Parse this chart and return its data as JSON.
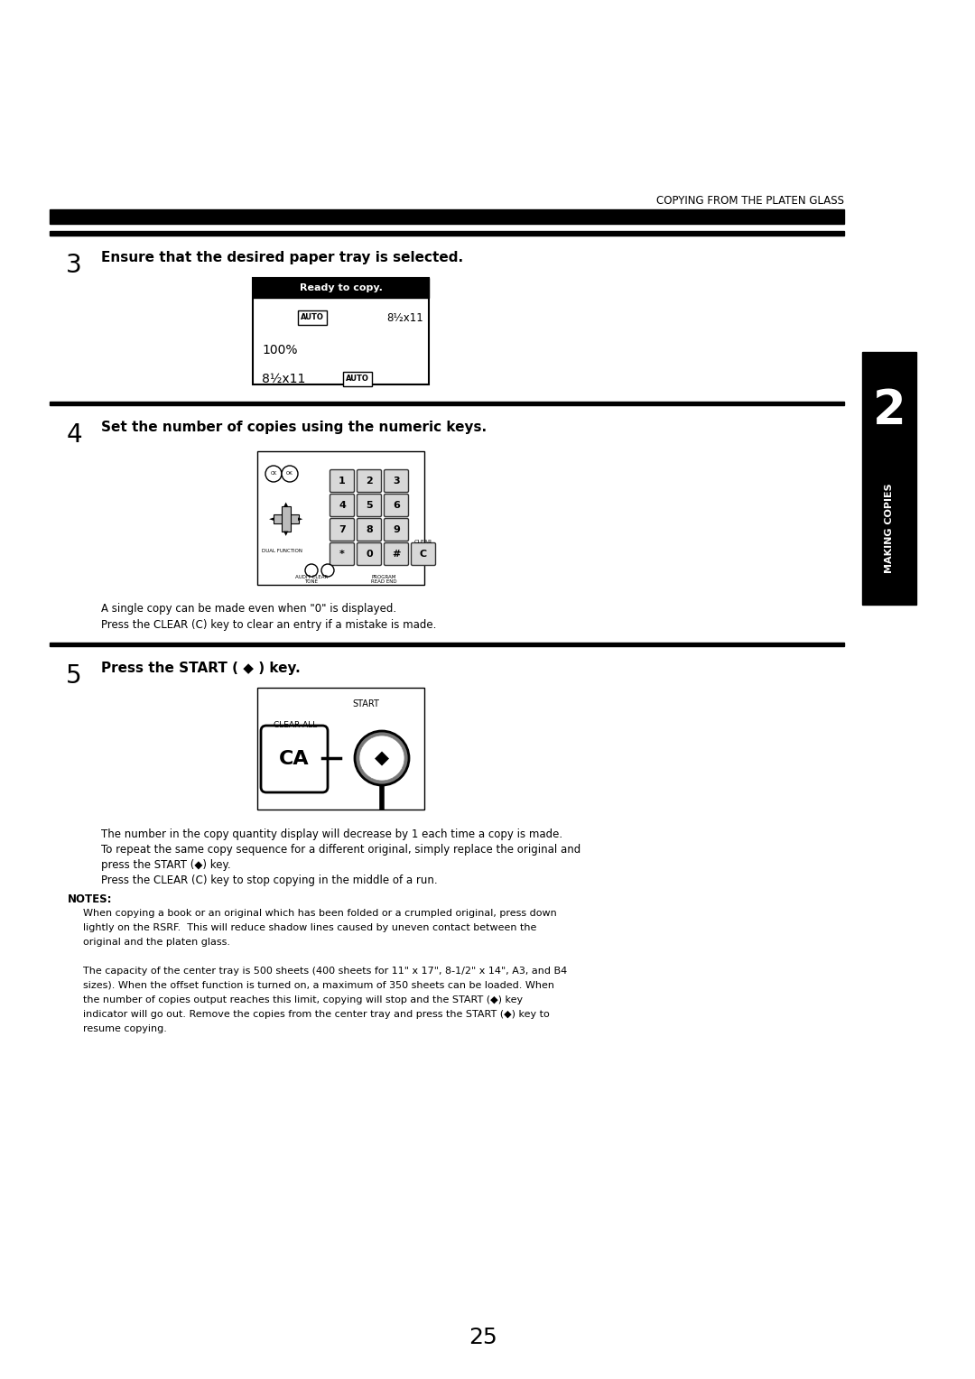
{
  "bg_color": "#ffffff",
  "page_width": 10.8,
  "page_height": 15.28,
  "header_title": "COPYING FROM THE PLATEN GLASS",
  "step3_num": "3",
  "step3_text": "Ensure that the desired paper tray is selected.",
  "step4_num": "4",
  "step4_text": "Set the number of copies using the numeric keys.",
  "step4_note1": "A single copy can be made even when \"0\" is displayed.",
  "step4_note2": "Press the CLEAR (C) key to clear an entry if a mistake is made.",
  "step5_num": "5",
  "step5_text1": "Press the START ( ",
  "step5_sym": "◆",
  "step5_text2": " ) key.",
  "step5_note1": "The number in the copy quantity display will decrease by 1 each time a copy is made.",
  "step5_note2": "To repeat the same copy sequence for a different original, simply replace the original and",
  "step5_note3": "press the START (◆) key.",
  "step5_note4": "Press the CLEAR (C) key to stop copying in the middle of a run.",
  "notes_title": "NOTES:",
  "notes_line1": "When copying a book or an original which has been folded or a crumpled original, press down",
  "notes_line2": "lightly on the RSRF.  This will reduce shadow lines caused by uneven contact between the",
  "notes_line3": "original and the platen glass.",
  "notes_line4": "The capacity of the center tray is 500 sheets (400 sheets for 11\" x 17\", 8-1/2\" x 14\", A3, and B4",
  "notes_line5": "sizes). When the offset function is turned on, a maximum of 350 sheets can be loaded. When",
  "notes_line6": "the number of copies output reaches this limit, copying will stop and the START (◆) key",
  "notes_line7": "indicator will go out. Remove the copies from the center tray and press the START (◆) key to",
  "notes_line8": "resume copying.",
  "page_number": "25",
  "sidebar_text": "MAKING COPIES",
  "sidebar_num": "2"
}
